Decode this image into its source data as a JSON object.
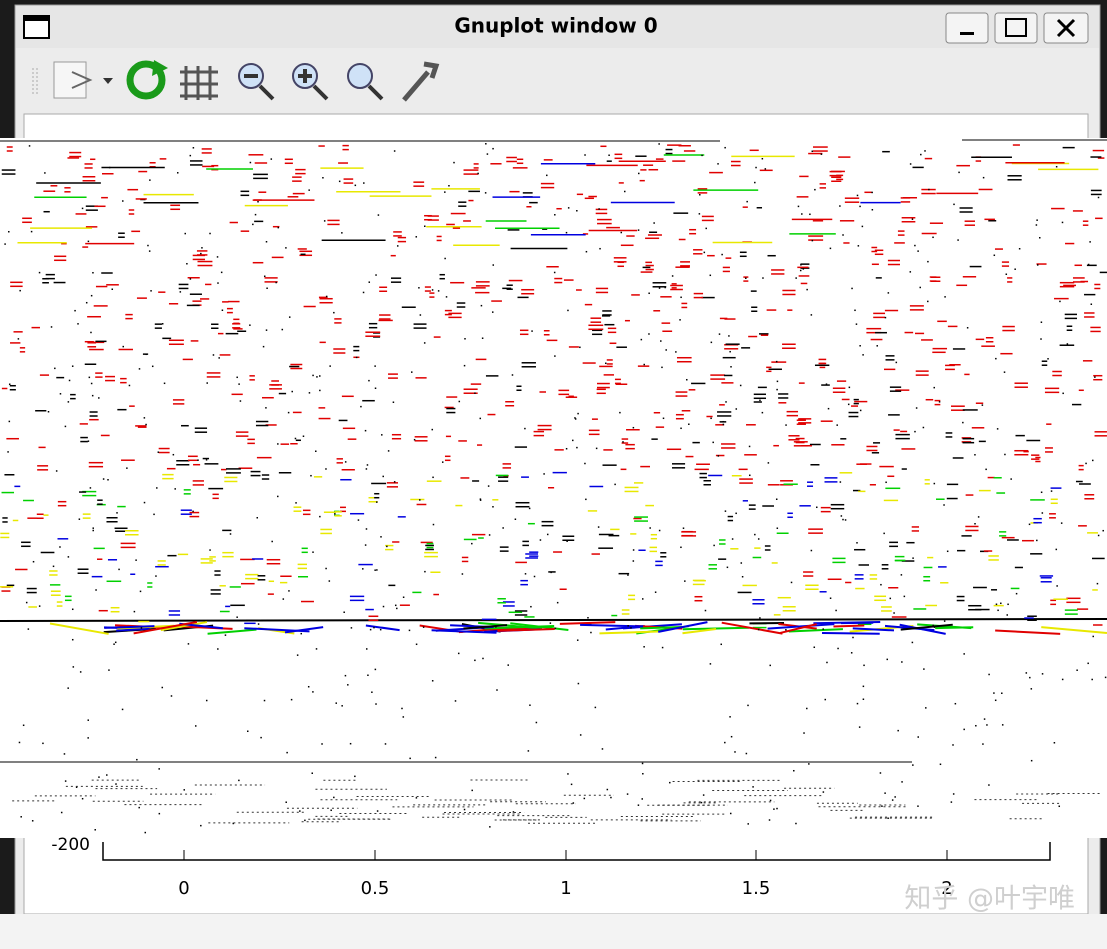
{
  "window": {
    "title": "Gnuplot window 0"
  },
  "plot": {
    "y_tick_label": "-200",
    "x_tick_labels": [
      "0",
      "0.5",
      "1",
      "1.5",
      "2"
    ]
  },
  "watermark": "知乎 @叶宇唯"
}
